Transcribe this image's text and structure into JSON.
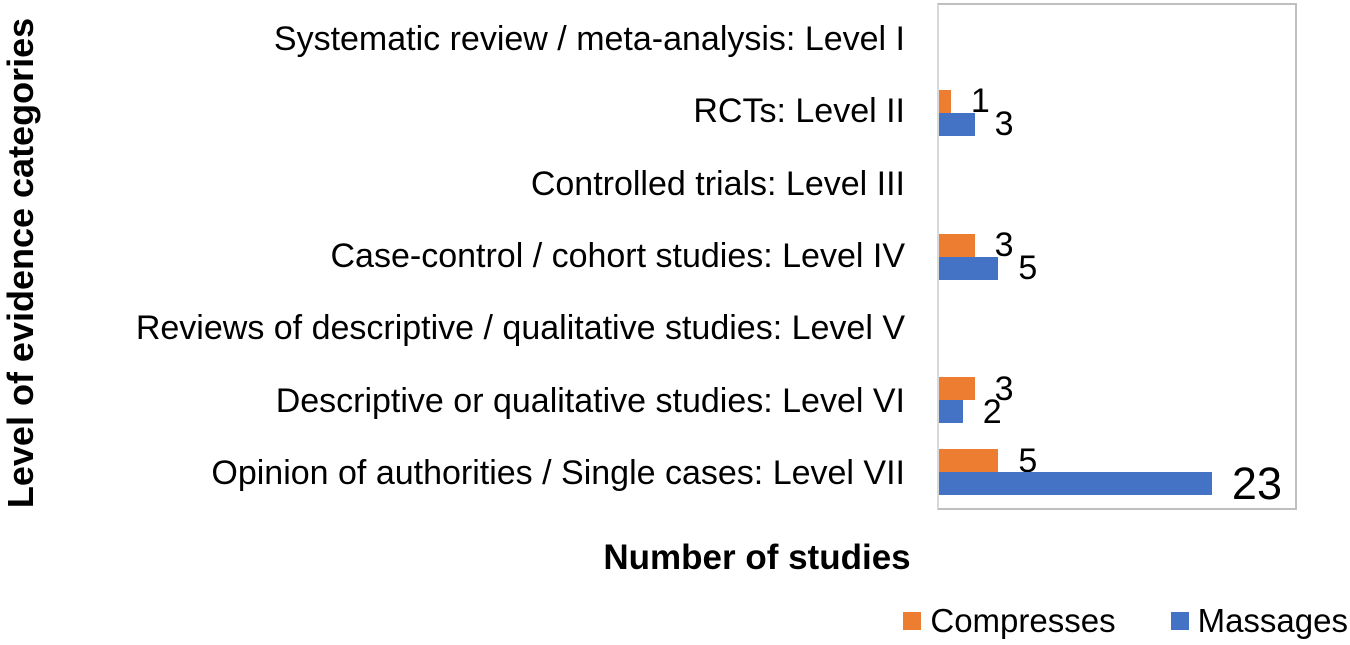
{
  "chart_data": {
    "type": "bar",
    "orientation": "horizontal",
    "title": "",
    "xlabel": "Number of studies",
    "ylabel": "Level of evidence categories",
    "xlim": [
      0,
      30
    ],
    "grid": false,
    "legend_position": "bottom-right",
    "data_labels": true,
    "categories": [
      "Systematic review / meta-analysis: Level I",
      "RCTs: Level II",
      "Controlled trials: Level III",
      "Case-control / cohort studies: Level IV",
      "Reviews of descriptive / qualitative studies: Level V",
      "Descriptive or qualitative studies: Level VI",
      "Opinion of authorities / Single cases: Level VII"
    ],
    "series": [
      {
        "name": "Compresses",
        "color": "#ED7D31",
        "values": [
          0,
          1,
          0,
          3,
          0,
          3,
          5
        ]
      },
      {
        "name": "Massages",
        "color": "#4472C4",
        "values": [
          0,
          3,
          0,
          5,
          0,
          2,
          23
        ]
      }
    ]
  },
  "colors": {
    "plot_border": "#BFBFBF",
    "axis_line": "#D9D9D9",
    "text": "#000000",
    "background": "#FFFFFF"
  }
}
